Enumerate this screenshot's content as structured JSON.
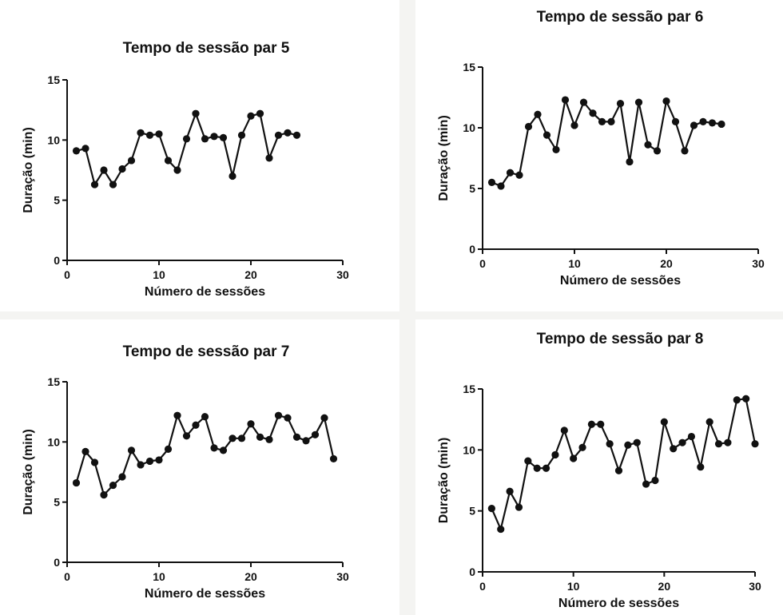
{
  "chart_data": [
    {
      "type": "line",
      "title": "Tempo de sessão par 5",
      "xlabel": "Número de sessões",
      "ylabel": "Duração (min)",
      "xlim": [
        0,
        30
      ],
      "ylim": [
        0,
        15
      ],
      "xticks": [
        0,
        10,
        20,
        30
      ],
      "yticks": [
        0,
        5,
        10,
        15
      ],
      "grid": false,
      "series": [
        {
          "x": [
            1,
            2,
            3,
            4,
            5,
            6,
            7,
            8,
            9,
            10,
            11,
            12,
            13,
            14,
            15,
            16,
            17,
            18,
            19,
            20,
            21,
            22,
            23,
            24,
            25
          ],
          "y": [
            9.1,
            9.3,
            6.3,
            7.5,
            6.3,
            7.6,
            8.3,
            10.6,
            10.4,
            10.5,
            8.3,
            7.5,
            10.1,
            12.2,
            10.1,
            10.3,
            10.2,
            7.0,
            10.4,
            12.0,
            12.2,
            8.5,
            10.4,
            10.6,
            10.4
          ]
        }
      ]
    },
    {
      "type": "line",
      "title": "Tempo de sessão par 6",
      "xlabel": "Número de sessões",
      "ylabel": "Duração (min)",
      "xlim": [
        0,
        30
      ],
      "ylim": [
        0,
        15
      ],
      "xticks": [
        0,
        10,
        20,
        30
      ],
      "yticks": [
        0,
        5,
        10,
        15
      ],
      "grid": false,
      "series": [
        {
          "x": [
            1,
            2,
            3,
            4,
            5,
            6,
            7,
            8,
            9,
            10,
            11,
            12,
            13,
            14,
            15,
            16,
            17,
            18,
            19,
            20,
            21,
            22,
            23,
            24,
            25,
            26
          ],
          "y": [
            5.5,
            5.2,
            6.3,
            6.1,
            10.1,
            11.1,
            9.4,
            8.2,
            12.3,
            10.2,
            12.1,
            11.2,
            10.5,
            10.5,
            12.0,
            7.2,
            12.1,
            8.6,
            8.1,
            12.2,
            10.5,
            8.1,
            10.2,
            10.5,
            10.4,
            10.3
          ]
        }
      ]
    },
    {
      "type": "line",
      "title": "Tempo de sessão par 7",
      "xlabel": "Número de sessões",
      "ylabel": "Duração (min)",
      "xlim": [
        0,
        30
      ],
      "ylim": [
        0,
        15
      ],
      "xticks": [
        0,
        10,
        20,
        30
      ],
      "yticks": [
        0,
        5,
        10,
        15
      ],
      "grid": false,
      "series": [
        {
          "x": [
            1,
            2,
            3,
            4,
            5,
            6,
            7,
            8,
            9,
            10,
            11,
            12,
            13,
            14,
            15,
            16,
            17,
            18,
            19,
            20,
            21,
            22,
            23,
            24,
            25,
            26,
            27,
            28,
            29
          ],
          "y": [
            6.6,
            9.2,
            8.3,
            5.6,
            6.4,
            7.1,
            9.3,
            8.1,
            8.4,
            8.5,
            9.4,
            12.2,
            10.5,
            11.4,
            12.1,
            9.5,
            9.3,
            10.3,
            10.3,
            11.5,
            10.4,
            10.2,
            12.2,
            12.0,
            10.4,
            10.1,
            10.6,
            12.0,
            8.6
          ]
        }
      ]
    },
    {
      "type": "line",
      "title": "Tempo de sessão par 8",
      "xlabel": "Número de sessões",
      "ylabel": "Duração (min)",
      "xlim": [
        0,
        30
      ],
      "ylim": [
        0,
        15
      ],
      "xticks": [
        0,
        10,
        20,
        30
      ],
      "yticks": [
        0,
        5,
        10,
        15
      ],
      "grid": false,
      "series": [
        {
          "x": [
            1,
            2,
            3,
            4,
            5,
            6,
            7,
            8,
            9,
            10,
            11,
            12,
            13,
            14,
            15,
            16,
            17,
            18,
            19,
            20,
            21,
            22,
            23,
            24,
            25,
            26,
            27,
            28,
            29,
            30
          ],
          "y": [
            5.2,
            3.5,
            6.6,
            5.3,
            9.1,
            8.5,
            8.5,
            9.6,
            11.6,
            9.3,
            10.2,
            12.1,
            12.1,
            10.5,
            8.3,
            10.4,
            10.6,
            7.2,
            7.5,
            12.3,
            10.1,
            10.6,
            11.1,
            8.6,
            12.3,
            10.5,
            10.6,
            14.1,
            14.2,
            10.5
          ]
        }
      ]
    }
  ]
}
